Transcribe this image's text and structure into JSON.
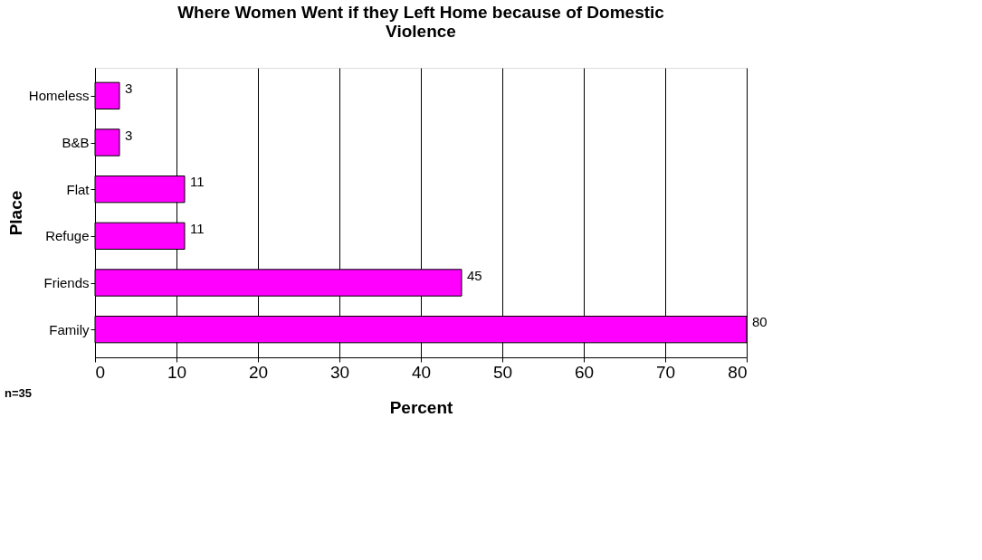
{
  "chart_data": {
    "type": "bar",
    "orientation": "horizontal",
    "title": "Where Women Went if they Left Home because of Domestic Violence",
    "categories": [
      "Homeless",
      "B&B",
      "Flat",
      "Refuge",
      "Friends",
      "Family"
    ],
    "values": [
      3,
      3,
      11,
      11,
      45,
      80
    ],
    "color": "#ff00ff",
    "xlim": [
      0,
      80
    ],
    "xticks": [
      0,
      10,
      20,
      30,
      40,
      50,
      60,
      70,
      80
    ],
    "grid": "x",
    "xlabel": "Percent",
    "ylabel": "Place",
    "data_labels": true,
    "annotations": [
      "n=35"
    ]
  }
}
